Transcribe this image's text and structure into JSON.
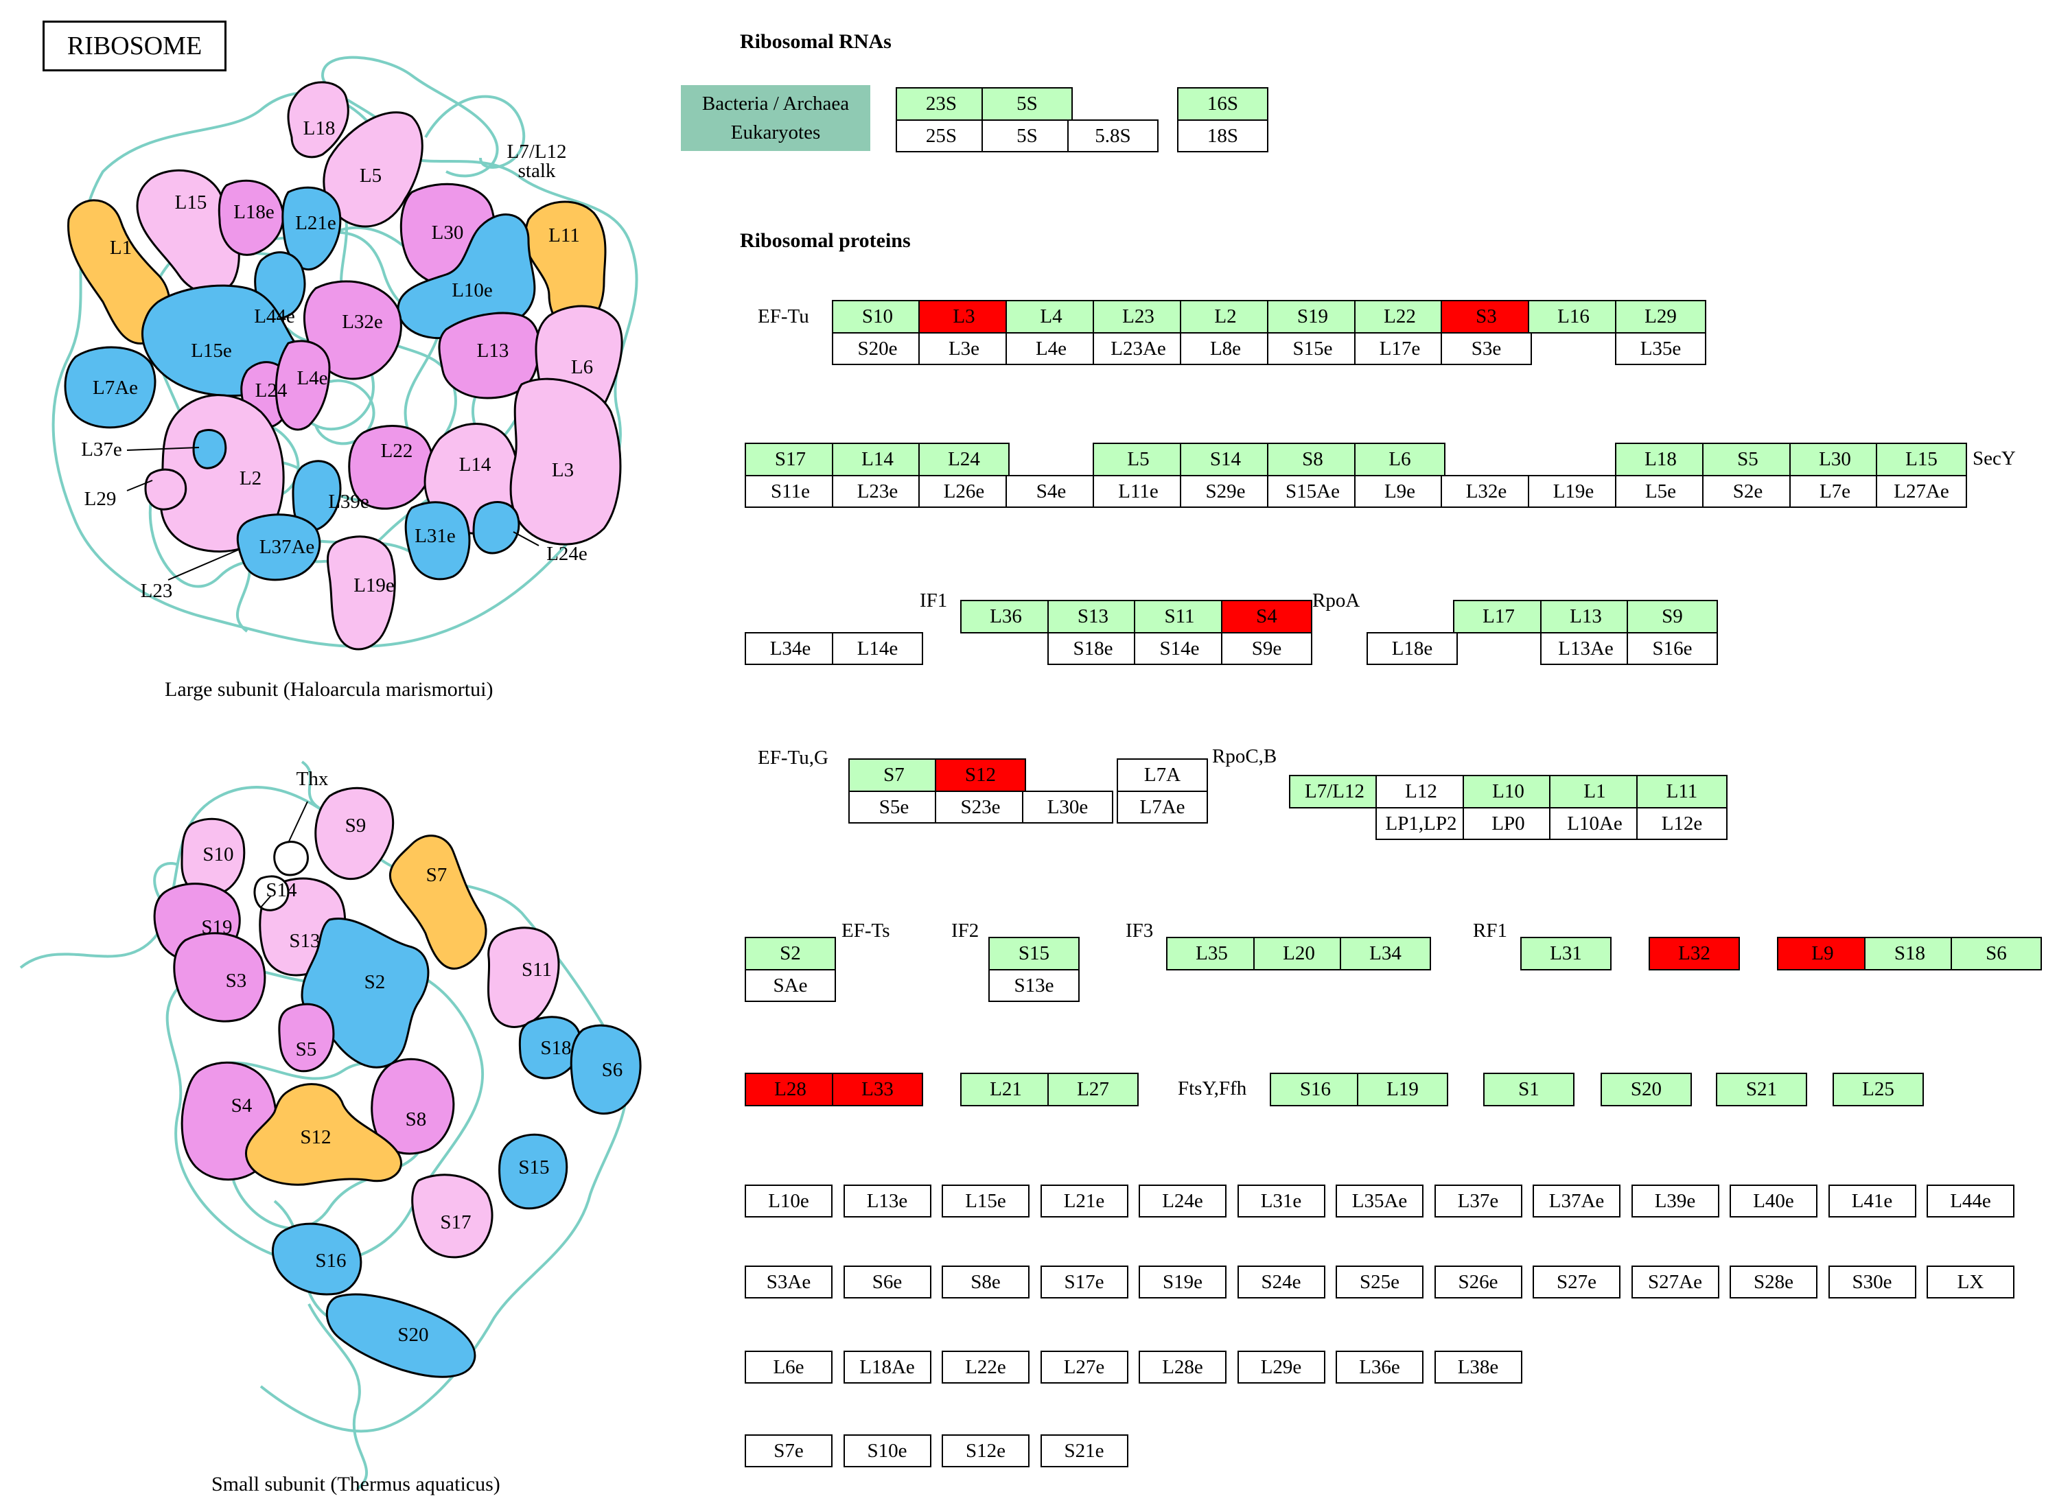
{
  "title": "RIBOSOME",
  "colors": {
    "bacteria_archaea": "#bfffbf",
    "highlight": "#ff0000",
    "eukaryote": "#ffffff",
    "legend_bg": "#8fcab3",
    "rna_strand": "#7ccfc4",
    "archaea_protein": "#59bdf0",
    "conserved_protein": "#f4aaf0",
    "bacterial_only_protein": "#ffc75a"
  },
  "headers": {
    "rna": "Ribosomal RNAs",
    "proteins": "Ribosomal proteins"
  },
  "legend": {
    "line1": "Bacteria / Archaea",
    "line2": "Eukaryotes"
  },
  "illustration": {
    "large_caption": "Large subunit (Haloarcula marismortui)",
    "small_caption": "Small subunit (Thermus aquaticus)",
    "large_labels": [
      "L18",
      "L5",
      "L15",
      "L18e",
      "L21e",
      "L30",
      "L1",
      "L11",
      "L10e",
      "L44e",
      "L32e",
      "L15e",
      "L13",
      "L6",
      "L24",
      "L4e",
      "L7Ae",
      "L2",
      "L22",
      "L14",
      "L3",
      "L39e",
      "L37Ae",
      "L31e",
      "L19e",
      "L7/L12 stalk",
      "L37e",
      "L29",
      "L23",
      "L24e"
    ],
    "small_labels": [
      "Thx",
      "S9",
      "S10",
      "S14",
      "S7",
      "S19",
      "S13",
      "S3",
      "S2",
      "S11",
      "S5",
      "S18",
      "S6",
      "S4",
      "S8",
      "S12",
      "S15",
      "S17",
      "S16",
      "S20"
    ]
  },
  "annotations": [
    "EF-Tu",
    "SecY",
    "IF1",
    "RpoA",
    "EF-Tu,G",
    "RpoC,B",
    "EF-Ts",
    "IF2",
    "IF3",
    "RF1",
    "FtsY,Ffh"
  ],
  "boxes": {
    "rna": [
      {
        "t": "23S",
        "c": "g"
      },
      {
        "t": "5S",
        "c": "g"
      },
      {
        "t": "16S",
        "c": "g"
      },
      {
        "t": "25S",
        "c": "w"
      },
      {
        "t": "5S",
        "c": "w"
      },
      {
        "t": "5.8S",
        "c": "w"
      },
      {
        "t": "18S",
        "c": "w"
      }
    ],
    "row1": [
      {
        "t": "S10",
        "c": "g"
      },
      {
        "t": "L3",
        "c": "r"
      },
      {
        "t": "L4",
        "c": "g"
      },
      {
        "t": "L23",
        "c": "g"
      },
      {
        "t": "L2",
        "c": "g"
      },
      {
        "t": "S19",
        "c": "g"
      },
      {
        "t": "L22",
        "c": "g"
      },
      {
        "t": "S3",
        "c": "r"
      },
      {
        "t": "L16",
        "c": "g"
      },
      {
        "t": "L29",
        "c": "g"
      },
      {
        "t": "S20e",
        "c": "w"
      },
      {
        "t": "L3e",
        "c": "w"
      },
      {
        "t": "L4e",
        "c": "w"
      },
      {
        "t": "L23Ae",
        "c": "w"
      },
      {
        "t": "L8e",
        "c": "w"
      },
      {
        "t": "S15e",
        "c": "w"
      },
      {
        "t": "L17e",
        "c": "w"
      },
      {
        "t": "S3e",
        "c": "w"
      },
      {
        "t": "L35e",
        "c": "w"
      }
    ],
    "row2": [
      {
        "t": "S17",
        "c": "g"
      },
      {
        "t": "L14",
        "c": "g"
      },
      {
        "t": "L24",
        "c": "g"
      },
      {
        "t": "L5",
        "c": "g"
      },
      {
        "t": "S14",
        "c": "g"
      },
      {
        "t": "S8",
        "c": "g"
      },
      {
        "t": "L6",
        "c": "g"
      },
      {
        "t": "L18",
        "c": "g"
      },
      {
        "t": "S5",
        "c": "g"
      },
      {
        "t": "L30",
        "c": "g"
      },
      {
        "t": "L15",
        "c": "g"
      },
      {
        "t": "S11e",
        "c": "w"
      },
      {
        "t": "L23e",
        "c": "w"
      },
      {
        "t": "L26e",
        "c": "w"
      },
      {
        "t": "S4e",
        "c": "w"
      },
      {
        "t": "L11e",
        "c": "w"
      },
      {
        "t": "S29e",
        "c": "w"
      },
      {
        "t": "S15Ae",
        "c": "w"
      },
      {
        "t": "L9e",
        "c": "w"
      },
      {
        "t": "L32e",
        "c": "w"
      },
      {
        "t": "L19e",
        "c": "w"
      },
      {
        "t": "L5e",
        "c": "w"
      },
      {
        "t": "S2e",
        "c": "w"
      },
      {
        "t": "L7e",
        "c": "w"
      },
      {
        "t": "L27Ae",
        "c": "w"
      }
    ],
    "row3": [
      {
        "t": "L36",
        "c": "g"
      },
      {
        "t": "S13",
        "c": "g"
      },
      {
        "t": "S11",
        "c": "g"
      },
      {
        "t": "S4",
        "c": "r"
      },
      {
        "t": "L17",
        "c": "g"
      },
      {
        "t": "L13",
        "c": "g"
      },
      {
        "t": "S9",
        "c": "g"
      },
      {
        "t": "L34e",
        "c": "w"
      },
      {
        "t": "L14e",
        "c": "w"
      },
      {
        "t": "S18e",
        "c": "w"
      },
      {
        "t": "S14e",
        "c": "w"
      },
      {
        "t": "S9e",
        "c": "w"
      },
      {
        "t": "L18e",
        "c": "w"
      },
      {
        "t": "L13Ae",
        "c": "w"
      },
      {
        "t": "S16e",
        "c": "w"
      }
    ],
    "row4": [
      {
        "t": "S7",
        "c": "g"
      },
      {
        "t": "S12",
        "c": "r"
      },
      {
        "t": "L7A",
        "c": "w"
      },
      {
        "t": "S5e",
        "c": "w"
      },
      {
        "t": "S23e",
        "c": "w"
      },
      {
        "t": "L30e",
        "c": "w"
      },
      {
        "t": "L7Ae",
        "c": "w"
      },
      {
        "t": "L7/L12",
        "c": "g"
      },
      {
        "t": "L12",
        "c": "w"
      },
      {
        "t": "L10",
        "c": "g"
      },
      {
        "t": "L1",
        "c": "g"
      },
      {
        "t": "L11",
        "c": "g"
      },
      {
        "t": "LP1,LP2",
        "c": "w"
      },
      {
        "t": "LP0",
        "c": "w"
      },
      {
        "t": "L10Ae",
        "c": "w"
      },
      {
        "t": "L12e",
        "c": "w"
      }
    ],
    "row5": [
      {
        "t": "S2",
        "c": "g"
      },
      {
        "t": "SAe",
        "c": "w"
      },
      {
        "t": "S15",
        "c": "g"
      },
      {
        "t": "S13e",
        "c": "w"
      },
      {
        "t": "L35",
        "c": "g"
      },
      {
        "t": "L20",
        "c": "g"
      },
      {
        "t": "L34",
        "c": "g"
      },
      {
        "t": "L31",
        "c": "g"
      },
      {
        "t": "L32",
        "c": "r"
      },
      {
        "t": "L9",
        "c": "r"
      },
      {
        "t": "S18",
        "c": "g"
      },
      {
        "t": "S6",
        "c": "g"
      }
    ],
    "row6": [
      {
        "t": "L28",
        "c": "r"
      },
      {
        "t": "L33",
        "c": "r"
      },
      {
        "t": "L21",
        "c": "g"
      },
      {
        "t": "L27",
        "c": "g"
      },
      {
        "t": "S16",
        "c": "g"
      },
      {
        "t": "L19",
        "c": "g"
      },
      {
        "t": "S1",
        "c": "g"
      },
      {
        "t": "S20",
        "c": "g"
      },
      {
        "t": "S21",
        "c": "g"
      },
      {
        "t": "L25",
        "c": "g"
      }
    ],
    "euk1": [
      "L10e",
      "L13e",
      "L15e",
      "L21e",
      "L24e",
      "L31e",
      "L35Ae",
      "L37e",
      "L37Ae",
      "L39e",
      "L40e",
      "L41e",
      "L44e"
    ],
    "euk2": [
      "S3Ae",
      "S6e",
      "S8e",
      "S17e",
      "S19e",
      "S24e",
      "S25e",
      "S26e",
      "S27e",
      "S27Ae",
      "S28e",
      "S30e",
      "LX"
    ],
    "euk3": [
      "L6e",
      "L18Ae",
      "L22e",
      "L27e",
      "L28e",
      "L29e",
      "L36e",
      "L38e"
    ],
    "euk4": [
      "S7e",
      "S10e",
      "S12e",
      "S21e"
    ]
  }
}
